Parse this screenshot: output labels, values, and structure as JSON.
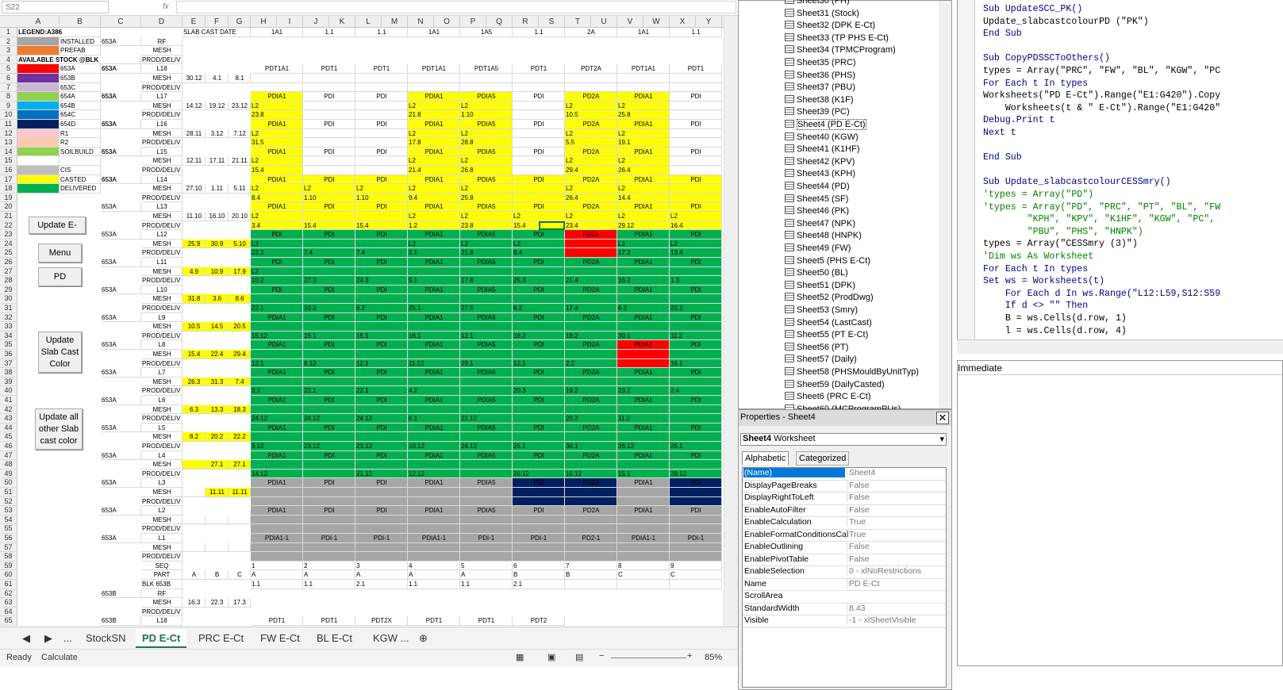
{
  "formula_bar": {
    "name_box": "S22",
    "fx": "fx",
    "value": ""
  },
  "columns": [
    "A",
    "B",
    "C",
    "D",
    "E",
    "F",
    "G",
    "H",
    "I",
    "J",
    "K",
    "L",
    "M",
    "N",
    "O",
    "P",
    "Q",
    "R",
    "S",
    "T",
    "U",
    "V",
    "W",
    "X",
    "Y"
  ],
  "colors": {
    "installed": "#a6a6a6",
    "prefab": "#ed7d31",
    "c653a": "#ff0000",
    "c653b": "#7030a0",
    "c653c": "#c9b6d8",
    "c654a": "#92d050",
    "c654b": "#00b0f0",
    "c654c": "#0070c0",
    "c654d": "#002060",
    "r1": "#ffc7ce",
    "r2": "#f8cbad",
    "soilbuild": "#92d050",
    "cis": "#bfbfbf",
    "casted": "#ffff00",
    "delivered": "#00b050",
    "grey": "#a6a6a6",
    "navy": "#002060",
    "red": "#ff0000",
    "lightgreen": "#92d050"
  },
  "legend": {
    "title": "LEGEND:A386",
    "available": "AVAILABLE STOCK @BLK",
    "items": [
      {
        "label": "INSTALLED",
        "extra": "653A"
      },
      {
        "label": "PREFAB",
        "extra": ""
      },
      {
        "label": "",
        "extra": ""
      },
      {
        "label": "653A",
        "extra": "653A"
      },
      {
        "label": "653B",
        "extra": ""
      },
      {
        "label": "653C",
        "extra": ""
      },
      {
        "label": "654A",
        "extra": "653A"
      },
      {
        "label": "654B",
        "extra": ""
      },
      {
        "label": "654C",
        "extra": ""
      },
      {
        "label": "654D",
        "extra": "653A"
      },
      {
        "label": "R1",
        "extra": ""
      },
      {
        "label": "R2",
        "extra": ""
      },
      {
        "label": "SOILBUILD",
        "extra": "653A"
      },
      {
        "label": "",
        "extra": ""
      },
      {
        "label": "CIS",
        "extra": ""
      },
      {
        "label": "CASTED",
        "extra": "653A"
      },
      {
        "label": "DELIVERED",
        "extra": ""
      }
    ]
  },
  "header_row1": {
    "slab": "SLAB CAST DATE",
    "h": "1A1",
    "j": "1.1",
    "l": "1.1",
    "n": "1A1",
    "p": "1A5",
    "r": "1.1",
    "t": "2A",
    "v": "1A1",
    "x": "1.1"
  },
  "buttons": {
    "update_e": "Update E-",
    "menu": "Menu",
    "pd": "PD",
    "update_slab": "Update Slab Cast Color",
    "update_all": "Update all other Slab cast color"
  },
  "levels": [
    {
      "row": 5,
      "lvl": "L18",
      "blk": "653A",
      "e": "30.12",
      "f": "4.1",
      "g": "8.1",
      "band": "white",
      "pd": [
        "PDT1A1",
        "PDT1",
        "PDT1",
        "PDT1A1",
        "PDT1A5",
        "PDT1",
        "PDT2A",
        "PDT1A1",
        "PDT1"
      ],
      "l2": [
        "",
        "",
        "",
        "",
        "",
        "",
        "",
        "",
        ""
      ],
      "vals": [
        "",
        "",
        "",
        "",
        "",
        "",
        "",
        "",
        ""
      ]
    },
    {
      "row": 8,
      "lvl": "L17",
      "blk": "653A",
      "e": "14.12",
      "f": "19.12",
      "g": "23.12",
      "band": "mix",
      "pd": [
        "PDIA1",
        "PDI",
        "PDI",
        "PDIA1",
        "PDIA5",
        "PDI",
        "PD2A",
        "PDIA1",
        "PDI"
      ],
      "l2": [
        "L2",
        "",
        "",
        "L2",
        "L2",
        "",
        "L2",
        "L2",
        ""
      ],
      "vals": [
        "23.8",
        "",
        "",
        "21.8",
        "1.10",
        "",
        "10.5",
        "25.8",
        ""
      ]
    },
    {
      "row": 11,
      "lvl": "L16",
      "blk": "653A",
      "e": "28.11",
      "f": "3.12",
      "g": "7.12",
      "band": "mix",
      "pd": [
        "PDIA1",
        "PDI",
        "PDI",
        "PDIA1",
        "PDIA5",
        "PDI",
        "PD2A",
        "PDIA1",
        "PDI"
      ],
      "l2": [
        "L2",
        "",
        "",
        "L2",
        "L2",
        "",
        "L2",
        "L2",
        ""
      ],
      "vals": [
        "31.5",
        "",
        "",
        "17.8",
        "28.8",
        "",
        "5.5",
        "19.1",
        ""
      ]
    },
    {
      "row": 14,
      "lvl": "L15",
      "blk": "653A",
      "e": "12.11",
      "f": "17.11",
      "g": "21.11",
      "band": "mix",
      "pd": [
        "PDIA1",
        "PDI",
        "PDI",
        "PDIA1",
        "PDIA5",
        "PDI",
        "PD2A",
        "PDIA1",
        "PDI"
      ],
      "l2": [
        "L2",
        "",
        "",
        "L2",
        "L2",
        "",
        "L2",
        "L2",
        ""
      ],
      "vals": [
        "15.4",
        "",
        "",
        "21.4",
        "26.8",
        "",
        "29.4",
        "26.4",
        ""
      ]
    },
    {
      "row": 17,
      "lvl": "L14",
      "blk": "653A",
      "e": "27.10",
      "f": "1.11",
      "g": "5.11",
      "band": "yellow",
      "pd": [
        "PDIA1",
        "PDI",
        "PDI",
        "PDIA1",
        "PDIA5",
        "PDI",
        "PD2A",
        "PDIA1",
        "PDI"
      ],
      "l2": [
        "L2",
        "L2",
        "L2",
        "L2",
        "L2",
        "",
        "L2",
        "L2",
        ""
      ],
      "vals": [
        "8.4",
        "1.10",
        "1.10",
        "9.4",
        "25.8",
        "",
        "26.4",
        "14.4",
        ""
      ]
    },
    {
      "row": 20,
      "lvl": "L13",
      "blk": "653A",
      "e": "11.10",
      "f": "16.10",
      "g": "20.10",
      "band": "yellow",
      "pd": [
        "PDIA1",
        "PDI",
        "PDI",
        "PDIA1",
        "PDIA5",
        "PDI",
        "PD2A",
        "PDIA1",
        "PDI"
      ],
      "l2": [
        "L2",
        "",
        "",
        "L2",
        "L2",
        "L2",
        "L2",
        "L2",
        "L2"
      ],
      "vals": [
        "3.4",
        "15.4",
        "15.4",
        "1.2",
        "23.8",
        "15.4",
        "23.4",
        "29.12",
        "16.4"
      ]
    },
    {
      "row": 23,
      "lvl": "L12",
      "blk": "653A",
      "e": "25.9",
      "f": "30.9",
      "g": "5.10",
      "band": "green",
      "pd": [
        "PDI",
        "PDI",
        "PDI",
        "PDIA1",
        "PDIA5",
        "PDI",
        "PD2A",
        "PDIA1",
        "PDI"
      ],
      "l2": [
        "L2",
        "",
        "",
        "L2",
        "L2",
        "L2",
        "",
        "L2",
        "L2"
      ],
      "vals": [
        "22.2",
        "7.4",
        "7.4",
        "2.1",
        "21.8",
        "9.4",
        "",
        "17.2",
        "13.4"
      ]
    },
    {
      "row": 26,
      "lvl": "L11",
      "blk": "653A",
      "e": "4.9",
      "f": "10.9",
      "g": "17.9",
      "band": "green",
      "pd": [
        "PDI",
        "PDI",
        "PDI",
        "PDIA1",
        "PDIA5",
        "PDI",
        "PD2A",
        "PDIA1",
        "PDI"
      ],
      "l2": [
        "L2",
        "",
        "",
        "",
        "",
        "",
        "",
        "",
        ""
      ],
      "vals": [
        "10.2",
        "27.3",
        "24.3",
        "9.1",
        "17.8",
        "25.3",
        "21.4",
        "16.2",
        "1.3"
      ]
    },
    {
      "row": 29,
      "lvl": "L10",
      "blk": "653A",
      "e": "31.8",
      "f": "3.6",
      "g": "8.6",
      "band": "green",
      "pd": [
        "PDI",
        "PDI",
        "PDI",
        "PDIA1",
        "PDIA5",
        "PDI",
        "PD2A",
        "PDIA1",
        "PDI"
      ],
      "l2": [
        "",
        "",
        "",
        "",
        "",
        "",
        "",
        "",
        ""
      ],
      "vals": [
        "22.1",
        "10.3",
        "5.2",
        "25.1",
        "27.5",
        "8.2",
        "17.4",
        "6.2",
        "22.2"
      ]
    },
    {
      "row": 32,
      "lvl": "L9",
      "blk": "653A",
      "e": "10.5",
      "f": "14.5",
      "g": "20.5",
      "band": "green",
      "pd": [
        "PDIA1",
        "PDI",
        "PDI",
        "PDIA1",
        "PDIA5",
        "PDI",
        "PD2A",
        "PDIA1",
        "PDI"
      ],
      "l2": [
        "",
        "",
        "",
        "",
        "",
        "",
        "",
        "",
        ""
      ],
      "vals": [
        "15.12",
        "15.1",
        "15.1",
        "16.1",
        "12.1",
        "18.2",
        "18.2",
        "30.1",
        "11.2"
      ]
    },
    {
      "row": 35,
      "lvl": "L8",
      "blk": "653A",
      "e": "15.4",
      "f": "22.4",
      "g": "29.4",
      "band": "green",
      "pd": [
        "PDIA1",
        "PDI",
        "PDI",
        "PDIA1",
        "PDIA5",
        "PDI",
        "PD2A",
        "PDIA1",
        "PDI"
      ],
      "l2": [
        "",
        "",
        "",
        "",
        "",
        "",
        "",
        "",
        ""
      ],
      "vals": [
        "12.1",
        "8.12",
        "12.1",
        "11.12",
        "29.1",
        "12.1",
        "2.2",
        "",
        "16.1"
      ]
    },
    {
      "row": 38,
      "lvl": "L7",
      "blk": "653A",
      "e": "26.3",
      "f": "31.3",
      "g": "7.4",
      "band": "green",
      "pd": [
        "PDIA1",
        "PDI",
        "PDI",
        "PDIA1",
        "PDIA5",
        "PDI",
        "PD2A",
        "PDIA1",
        "PDI"
      ],
      "l2": [
        "",
        "",
        "",
        "",
        "",
        "",
        "",
        "",
        ""
      ],
      "vals": [
        "3.2",
        "22.1",
        "22.1",
        "4.2",
        "",
        "20.3",
        "19.2",
        "23.2",
        "2.4"
      ]
    },
    {
      "row": 41,
      "lvl": "L6",
      "blk": "653A",
      "e": "6.3",
      "f": "13.3",
      "g": "18.3",
      "band": "green",
      "pd": [
        "PDIA1",
        "PDI",
        "PDI",
        "PDIA1",
        "PDIA5",
        "PDI",
        "PD2A",
        "PDIA1",
        "PDI"
      ],
      "l2": [
        "",
        "",
        "",
        "",
        "",
        "",
        "",
        "",
        ""
      ],
      "vals": [
        "24.12",
        "24.12",
        "24.12",
        "6.1",
        "21.12",
        "",
        "20.2",
        "11.2",
        ""
      ]
    },
    {
      "row": 44,
      "lvl": "L5",
      "blk": "653A",
      "e": "8.2",
      "f": "20.2",
      "g": "22.2",
      "band": "green",
      "pd": [
        "PDIA1",
        "PDI",
        "PDI",
        "PDIA1",
        "PDIA5",
        "PDI",
        "PD2A",
        "PDIA1",
        "PDI"
      ],
      "l2": [
        "",
        "",
        "",
        "",
        "",
        "",
        "",
        "",
        ""
      ],
      "vals": [
        "9.12",
        "23.12",
        "23.12",
        "10.12",
        "24.12",
        "25.1",
        "30.1",
        "26.12",
        "25.1"
      ]
    },
    {
      "row": 47,
      "lvl": "L4",
      "blk": "653A",
      "e": "",
      "f": "27.1",
      "g": "27.1",
      "band": "green",
      "pd": [
        "PDIA1",
        "PDI",
        "PDI",
        "PDIA1",
        "PDIA5",
        "PDI",
        "PD2A",
        "PDIA1",
        "PDI"
      ],
      "l2": [
        "",
        "",
        "",
        "",
        "",
        "",
        "",
        "",
        ""
      ],
      "vals": [
        "14.12",
        "",
        "21.12",
        "12.12",
        "",
        "26.12",
        "10.12",
        "15.1",
        "28.12"
      ]
    },
    {
      "row": 50,
      "lvl": "L3",
      "blk": "653A",
      "e": "",
      "f": "11.11",
      "g": "11.11",
      "band": "grey",
      "pd": [
        "PDIA1",
        "PDI",
        "PDI",
        "PDIA1",
        "PDIA5",
        "PDI",
        "PD2A",
        "PDIA1",
        "PDI"
      ],
      "l2": [
        "",
        "",
        "",
        "",
        "",
        "",
        "",
        "",
        ""
      ],
      "vals": [
        "",
        "",
        "",
        "",
        "",
        "",
        "",
        "",
        ""
      ]
    },
    {
      "row": 53,
      "lvl": "L2",
      "blk": "653A",
      "e": "",
      "f": "",
      "g": "",
      "band": "grey",
      "pd": [
        "PDIA1",
        "PDI",
        "PDI",
        "PDIA1",
        "PDIA5",
        "PDI",
        "PD2A",
        "PDIA1",
        "PDI"
      ],
      "l2": [
        "",
        "",
        "",
        "",
        "",
        "",
        "",
        "",
        ""
      ],
      "vals": [
        "",
        "",
        "",
        "",
        "",
        "",
        "",
        "",
        ""
      ]
    },
    {
      "row": 56,
      "lvl": "L1",
      "blk": "653A",
      "e": "",
      "f": "",
      "g": "",
      "band": "grey",
      "pd": [
        "PDIA1-1",
        "PDI-1",
        "PDI-1",
        "PDIA1-1",
        "PDI-1",
        "PDI-1",
        "PD2-1",
        "PDIA1-1",
        "PDI-1"
      ],
      "l2": [
        "",
        "",
        "",
        "",
        "",
        "",
        "",
        "",
        ""
      ],
      "vals": [
        "",
        "",
        "",
        "",
        "",
        "",
        "",
        "",
        ""
      ]
    }
  ],
  "subs": {
    "mesh": "MESH",
    "prod": "PROD/DELIV",
    "rf": "RF"
  },
  "seq_rows": {
    "seq": "SEQ",
    "part": "PART",
    "blk": "BLK 653B",
    "nums": [
      "1",
      "2",
      "3",
      "4",
      "5",
      "6",
      "7",
      "8",
      "9"
    ],
    "parts": [
      "A",
      "A",
      "A",
      "A",
      "A",
      "B",
      "B",
      "C",
      "C"
    ],
    "blks": [
      "1.1",
      "1.1",
      "2.1",
      "1.1",
      "1.1",
      "2.1",
      "",
      "",
      ""
    ],
    "abc": [
      "A",
      "B",
      "C"
    ]
  },
  "bottom": {
    "blk": "653B",
    "e": "16.3",
    "f": "22.3",
    "g": "17.3",
    "pd": [
      "PDT1",
      "PDT1",
      "PDT2X",
      "PDT1",
      "PDT1",
      "PDT2"
    ],
    "l18": "L18"
  },
  "tabs": [
    "StockSN",
    "PD E-Ct",
    "PRC E-Ct",
    "FW E-Ct",
    "BL E-Ct",
    "KGW ..."
  ],
  "status": {
    "ready": "Ready",
    "calc": "Calculate",
    "zoom": "85%"
  },
  "tree": [
    "Sheet30 (PH)",
    "Sheet31 (Stock)",
    "Sheet32 (DPK E-Ct)",
    "Sheet33 (TP PHS E-Ct)",
    "Sheet34 (TPMCProgram)",
    "Sheet35 (PRC)",
    "Sheet36 (PHS)",
    "Sheet37 (PBU)",
    "Sheet38 (K1F)",
    "Sheet39 (PC)",
    "Sheet4 (PD E-Ct)",
    "Sheet40 (KGW)",
    "Sheet41 (K1HF)",
    "Sheet42 (KPV)",
    "Sheet43 (KPH)",
    "Sheet44 (PD)",
    "Sheet45 (SF)",
    "Sheet46 (PK)",
    "Sheet47 (NPK)",
    "Sheet48 (HNPK)",
    "Sheet49 (FW)",
    "Sheet5 (PHS E-Ct)",
    "Sheet50 (BL)",
    "Sheet51 (DPK)",
    "Sheet52 (ProdDwg)",
    "Sheet53 (Smry)",
    "Sheet54 (LastCast)",
    "Sheet55 (PT E-Ct)",
    "Sheet56 (PT)",
    "Sheet57 (Daily)",
    "Sheet58 (PHSMouldByUnitTyp)",
    "Sheet59 (DailyCasted)",
    "Sheet6 (PRC E-Ct)",
    "Sheet60 (MCProgramPUs)"
  ],
  "props": {
    "title": "Properties - Sheet4",
    "obj": "Sheet4",
    "objtype": "Worksheet",
    "tab_alpha": "Alphabetic",
    "tab_cat": "Categorized",
    "rows": [
      {
        "k": "(Name)",
        "v": "Sheet4"
      },
      {
        "k": "DisplayPageBreaks",
        "v": "False"
      },
      {
        "k": "DisplayRightToLeft",
        "v": "False"
      },
      {
        "k": "EnableAutoFilter",
        "v": "False"
      },
      {
        "k": "EnableCalculation",
        "v": "True"
      },
      {
        "k": "EnableFormatConditionsCal",
        "v": "True"
      },
      {
        "k": "EnableOutlining",
        "v": "False"
      },
      {
        "k": "EnablePivotTable",
        "v": "False"
      },
      {
        "k": "EnableSelection",
        "v": "0 - xlNoRestrictions"
      },
      {
        "k": "Name",
        "v": "PD E-Ct"
      },
      {
        "k": "ScrollArea",
        "v": ""
      },
      {
        "k": "StandardWidth",
        "v": "8.43"
      },
      {
        "k": "Visible",
        "v": "-1 - xlSheetVisible"
      }
    ]
  },
  "code": [
    {
      "t": "Sub UpdateSCC_PK()",
      "c": "kw"
    },
    {
      "t": "Update_slabcastcolourPD (\"PK\")",
      "c": ""
    },
    {
      "t": "End Sub",
      "c": "kw"
    },
    {
      "t": "",
      "c": ""
    },
    {
      "t": "Sub CopyPDSSCToOthers()",
      "c": "kw"
    },
    {
      "t": "types = Array(\"PRC\", \"FW\", \"BL\", \"KGW\", \"PC",
      "c": ""
    },
    {
      "t": "For Each t In types",
      "c": "kw"
    },
    {
      "t": "Worksheets(\"PD E-Ct\").Range(\"E1:G420\").Copy",
      "c": ""
    },
    {
      "t": "    Worksheets(t & \" E-Ct\").Range(\"E1:G420\"",
      "c": ""
    },
    {
      "t": "Debug.Print t",
      "c": "kw"
    },
    {
      "t": "Next t",
      "c": "kw"
    },
    {
      "t": "",
      "c": ""
    },
    {
      "t": "End Sub",
      "c": "kw"
    },
    {
      "t": "",
      "c": ""
    },
    {
      "t": "Sub Update_slabcastcolourCESSmry()",
      "c": "kw"
    },
    {
      "t": "'types = Array(\"PD\")",
      "c": "cm"
    },
    {
      "t": "'types = Array(\"PD\", \"PRC\", \"PT\", \"BL\", \"FW",
      "c": "cm"
    },
    {
      "t": "        \"KPH\", \"KPV\", \"K1HF\", \"KGW\", \"PC\",",
      "c": "cm"
    },
    {
      "t": "        \"PBU\", \"PHS\", \"HNPK\")",
      "c": "cm"
    },
    {
      "t": "types = Array(\"CESSmry (3)\")",
      "c": ""
    },
    {
      "t": "'Dim ws As Worksheet",
      "c": "cm"
    },
    {
      "t": "For Each t In types",
      "c": "kw"
    },
    {
      "t": "Set ws = Worksheets(t)",
      "c": "kw"
    },
    {
      "t": "    For Each d In ws.Range(\"L12:L59,S12:S59",
      "c": "kw"
    },
    {
      "t": "    If d <> \"\" Then",
      "c": "kw"
    },
    {
      "t": "    B = ws.Cells(d.row, 1)",
      "c": ""
    },
    {
      "t": "    l = ws.Cells(d.row, 4)",
      "c": ""
    }
  ],
  "immediate": "Immediate"
}
